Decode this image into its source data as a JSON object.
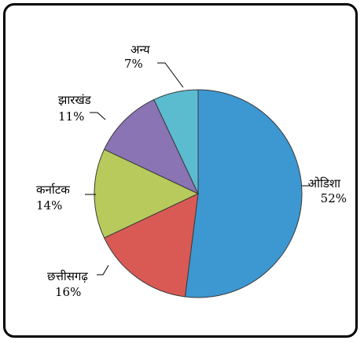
{
  "chart_data": {
    "type": "pie",
    "title": "",
    "slices": [
      {
        "label": "ओडिशा",
        "value": 52,
        "value_label": "52%",
        "color": "#3d97d1"
      },
      {
        "label": "छत्तीसगढ़",
        "value": 16,
        "value_label": "16%",
        "color": "#d95a54"
      },
      {
        "label": "कर्नाटक",
        "value": 14,
        "value_label": "14%",
        "color": "#b8ca5c"
      },
      {
        "label": "झारखंड",
        "value": 11,
        "value_label": "11%",
        "color": "#8a74b4"
      },
      {
        "label": "अन्य",
        "value": 7,
        "value_label": "7%",
        "color": "#5bbcd0"
      }
    ],
    "start": "12 o'clock",
    "direction": "clockwise",
    "legend": "none",
    "labels": "outside with leader lines"
  }
}
